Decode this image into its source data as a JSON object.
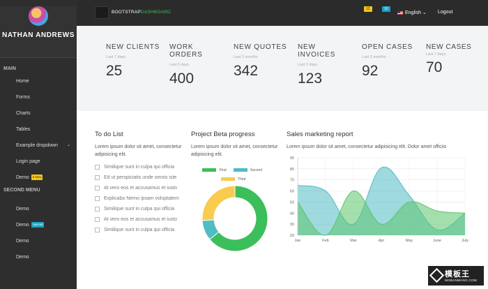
{
  "user": {
    "name": "NATHAN ANDREWS"
  },
  "sidebar": {
    "main_heading": "MAIN",
    "main_items": [
      {
        "label": "Home"
      },
      {
        "label": "Forms"
      },
      {
        "label": "Charts"
      },
      {
        "label": "Tables"
      },
      {
        "label": "Example dropdown"
      },
      {
        "label": "Login page"
      },
      {
        "label": "Demo",
        "badge": "6 New"
      }
    ],
    "second_heading": "SECOND MENU",
    "second_items": [
      {
        "label": "Demo"
      },
      {
        "label": "Demo",
        "badge": "Special"
      },
      {
        "label": "Demo"
      },
      {
        "label": "Demo"
      }
    ]
  },
  "topbar": {
    "brand_prefix": "BOOTSTRAP",
    "brand_suffix": "DASHBOARD",
    "badge_yellow": "12",
    "badge_blue": "10",
    "language": "English",
    "logout": "Logout"
  },
  "stats": [
    {
      "title": "NEW CLIENTS",
      "sub": "Last 7 days",
      "value": "25"
    },
    {
      "title": "WORK ORDERS",
      "sub": "Last 5 days",
      "value": "400"
    },
    {
      "title": "NEW QUOTES",
      "sub": "Last 2 months",
      "value": "342"
    },
    {
      "title": "NEW INVOICES",
      "sub": "Last 2 days",
      "value": "123"
    },
    {
      "title": "OPEN CASES",
      "sub": "Last 3 months",
      "value": "92"
    },
    {
      "title": "NEW CASES",
      "sub": "Last 7 days",
      "value": "70"
    }
  ],
  "todo": {
    "title": "To do List",
    "desc": "Lorem ipsum dolor sit amet, consectetur adipisicing elit.",
    "items": [
      "Similique sunt in culpa qui officia",
      "Ed ut perspiciatis unde omnis iste",
      "At vero eos et accusamus et iusto",
      "Explicabo Nemo ipsam voluptatem",
      "Similique sunt in culpa qui officia",
      "At vero eos et accusamus et iusto",
      "Similique sunt in culpa qui officia"
    ]
  },
  "progress": {
    "title": "Project Beta progress",
    "desc": "Lorem ipsum dolor sit amet, consectetur adipisicing elit."
  },
  "sales": {
    "title": "Sales marketing report",
    "desc": "Lorem ipsum dolor sit amet, consectetur adipisicing elit. Dolor amet officiis"
  },
  "colors": {
    "green": "#3bbf5a",
    "teal": "#50bcc4",
    "yellow": "#f9cc4f",
    "dark": "#2e2e2e"
  },
  "chart_data": [
    {
      "type": "pie",
      "subtype": "doughnut",
      "labels": [
        "First",
        "Second",
        "Third"
      ],
      "values": [
        64,
        10,
        26
      ],
      "colors": [
        "#3bbf5a",
        "#50bcc4",
        "#f9cc4f"
      ]
    },
    {
      "type": "area",
      "categories": [
        "Jan",
        "Feb",
        "Mar",
        "Apr",
        "May",
        "June",
        "July"
      ],
      "ylim": [
        20,
        90
      ],
      "yticks": [
        20,
        30,
        40,
        50,
        60,
        70,
        80,
        90
      ],
      "series": [
        {
          "values": [
            65,
            60,
            30,
            81,
            56,
            25,
            40
          ],
          "color": "#50bcc4"
        },
        {
          "values": [
            50,
            20,
            60,
            30,
            50,
            42,
            40
          ],
          "color": "#5cc46c"
        }
      ]
    }
  ],
  "watermark": {
    "title": "模板王",
    "sub": "MOBANWANG.COM"
  }
}
